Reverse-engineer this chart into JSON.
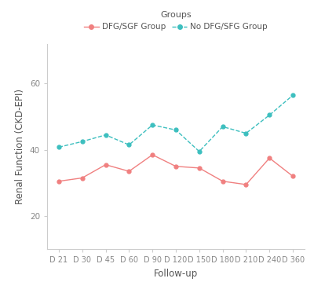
{
  "x_labels": [
    "D 21",
    "D 30",
    "D 45",
    "D 60",
    "D 90",
    "D 120",
    "D 150",
    "D 180",
    "D 210",
    "D 240",
    "D 360"
  ],
  "dfg_sgf": [
    30.5,
    31.5,
    35.5,
    33.5,
    38.5,
    35.0,
    34.5,
    30.5,
    29.5,
    37.5,
    32.0
  ],
  "no_dfg_sfg": [
    40.8,
    42.5,
    44.5,
    41.5,
    47.5,
    46.0,
    39.5,
    47.0,
    45.0,
    50.5,
    56.5
  ],
  "dfg_color": "#F08080",
  "no_dfg_color": "#3DBFBF",
  "xlabel": "Follow-up",
  "ylabel": "Renal Function (CKD-EPI)",
  "legend_title": "Groups",
  "legend_labels": [
    "DFG/SGF Group",
    "No DFG/SFG Group"
  ],
  "ylim_min": 10,
  "ylim_max": 72,
  "yticks": [
    20,
    40,
    60
  ],
  "background_color": "#ffffff",
  "spine_color": "#cccccc",
  "tick_color": "#888888",
  "label_color": "#555555"
}
